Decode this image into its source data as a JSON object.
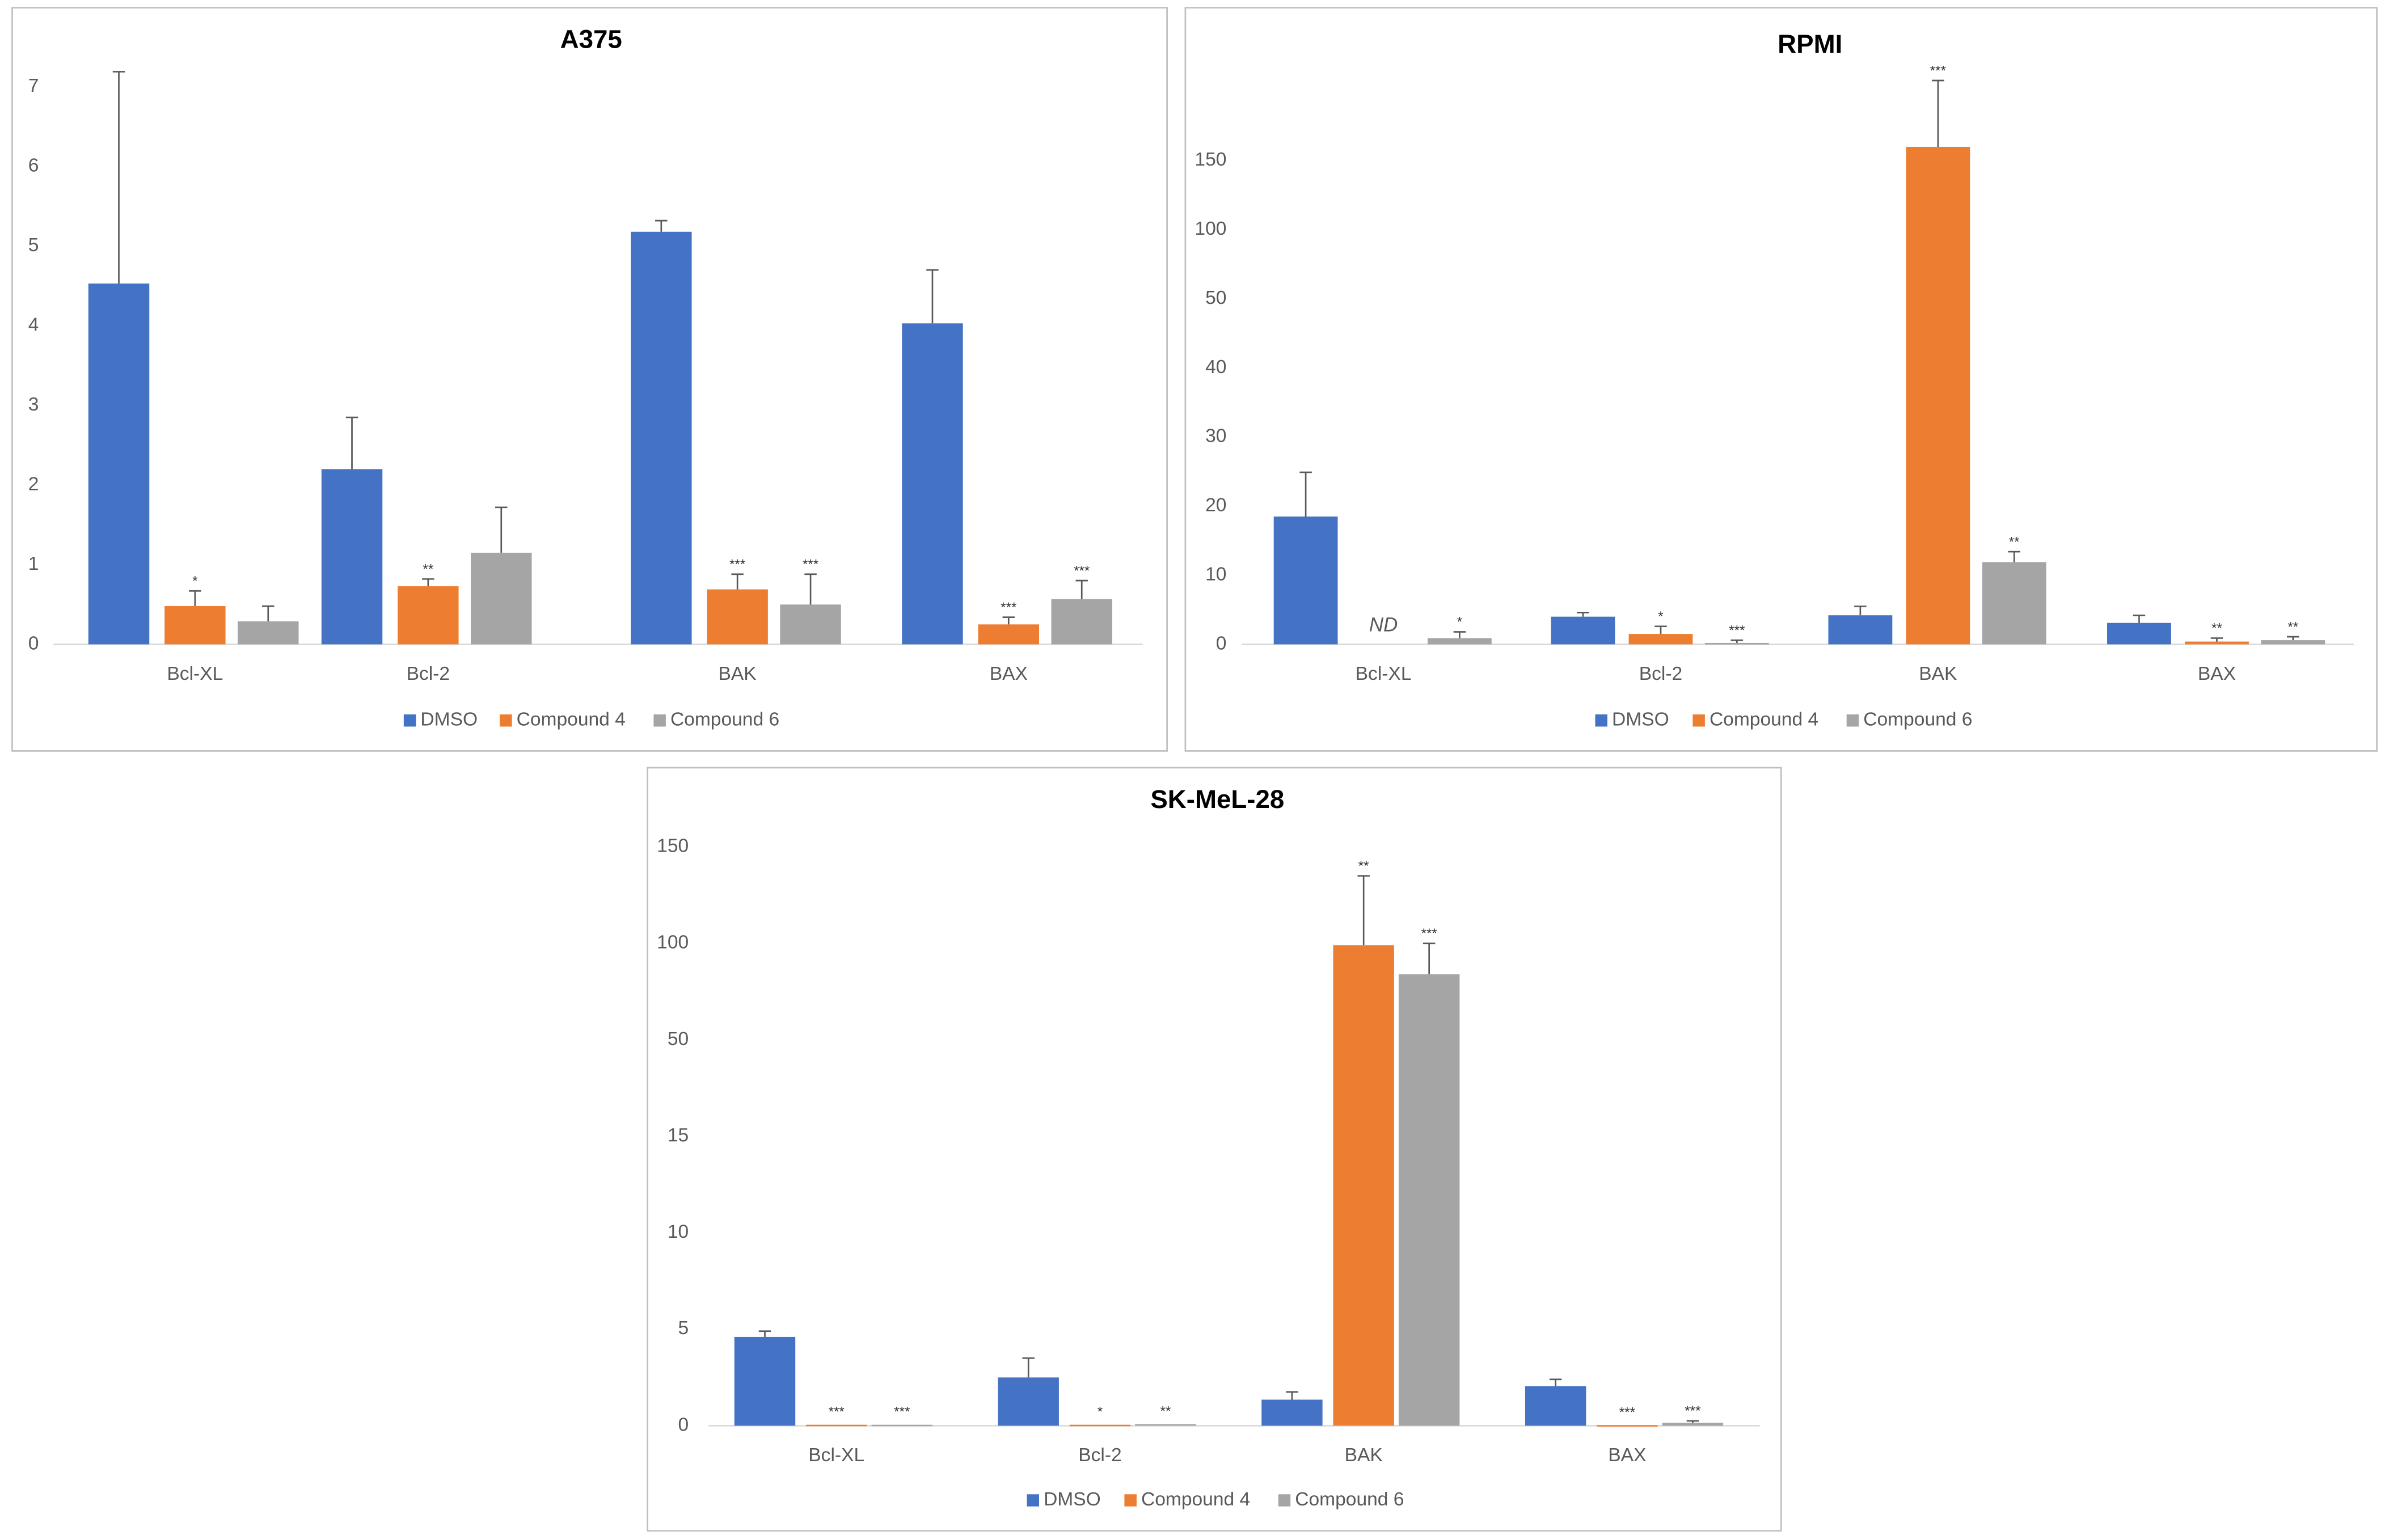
{
  "chart_data": [
    {
      "type": "bar",
      "title": "A375",
      "categories": [
        "Bcl-XL",
        "Bcl-2",
        "BAK",
        "BAX"
      ],
      "series": [
        {
          "name": "DMSO",
          "color": "#4472c4",
          "values": [
            4.53,
            2.2,
            5.18,
            4.03
          ],
          "errors": [
            2.66,
            0.65,
            0.14,
            0.67
          ],
          "labels": [
            null,
            null,
            null,
            null
          ]
        },
        {
          "name": "Compound 4",
          "color": "#ed7d31",
          "values": [
            0.48,
            0.73,
            0.69,
            0.25
          ],
          "errors": [
            0.19,
            0.09,
            0.19,
            0.09
          ],
          "labels": [
            "*",
            "**",
            "***",
            "***"
          ]
        },
        {
          "name": "Compound 6",
          "color": "#a5a5a5",
          "values": [
            0.29,
            1.15,
            0.5,
            0.57
          ],
          "errors": [
            0.19,
            0.57,
            0.38,
            0.23
          ],
          "labels": [
            null,
            null,
            "***",
            "***"
          ]
        }
      ],
      "ylim": [
        0,
        7.2
      ],
      "yticks": [
        0,
        1,
        2,
        3,
        4,
        5,
        6,
        7
      ]
    },
    {
      "type": "bar",
      "title": "RPMI",
      "categories": [
        "Bcl-XL",
        "Bcl-2",
        "BAK",
        "BAX"
      ],
      "series": [
        {
          "name": "DMSO",
          "color": "#4472c4",
          "values": [
            18.5,
            4,
            4.2,
            3.1
          ],
          "errors": [
            6.4,
            0.6,
            1.3,
            1.1
          ],
          "labels": [
            null,
            null,
            null,
            null
          ]
        },
        {
          "name": "Compound 4",
          "color": "#ed7d31",
          "values": [
            null,
            1.5,
            160,
            0.4
          ],
          "errors": [
            null,
            1.1,
            48,
            0.5
          ],
          "labels": [
            "ND",
            "*",
            "***",
            "**"
          ]
        },
        {
          "name": "Compound 6",
          "color": "#a5a5a5",
          "values": [
            0.9,
            0.2,
            11.9,
            0.6
          ],
          "errors": [
            0.9,
            0.4,
            1.5,
            0.5
          ],
          "labels": [
            "*",
            "***",
            "**",
            "**"
          ]
        }
      ],
      "ylim": [
        0,
        210
      ],
      "yticks": [
        0,
        10,
        20,
        30,
        40,
        50,
        100,
        150
      ]
    },
    {
      "type": "bar",
      "title": "SK-MeL-28",
      "categories": [
        "Bcl-XL",
        "Bcl-2",
        "BAK",
        "BAX"
      ],
      "series": [
        {
          "name": "DMSO",
          "color": "#4472c4",
          "values": [
            4.6,
            2.5,
            1.35,
            2.05
          ],
          "errors": [
            0.3,
            1,
            0.4,
            0.35
          ],
          "labels": [
            null,
            null,
            null,
            null
          ]
        },
        {
          "name": "Compound 4",
          "color": "#ed7d31",
          "values": [
            0.05,
            0.05,
            99,
            0.03
          ],
          "errors": [
            null,
            null,
            36,
            null
          ],
          "labels": [
            "***",
            "*",
            "**",
            "***"
          ]
        },
        {
          "name": "Compound 6",
          "color": "#a5a5a5",
          "values": [
            0.05,
            0.08,
            84,
            0.15
          ],
          "errors": [
            null,
            null,
            16,
            0.1
          ],
          "labels": [
            "***",
            "**",
            "***",
            "***"
          ]
        }
      ],
      "ylim": [
        0,
        150
      ],
      "yticks": [
        0,
        5,
        10,
        15,
        50,
        100,
        150
      ]
    }
  ]
}
